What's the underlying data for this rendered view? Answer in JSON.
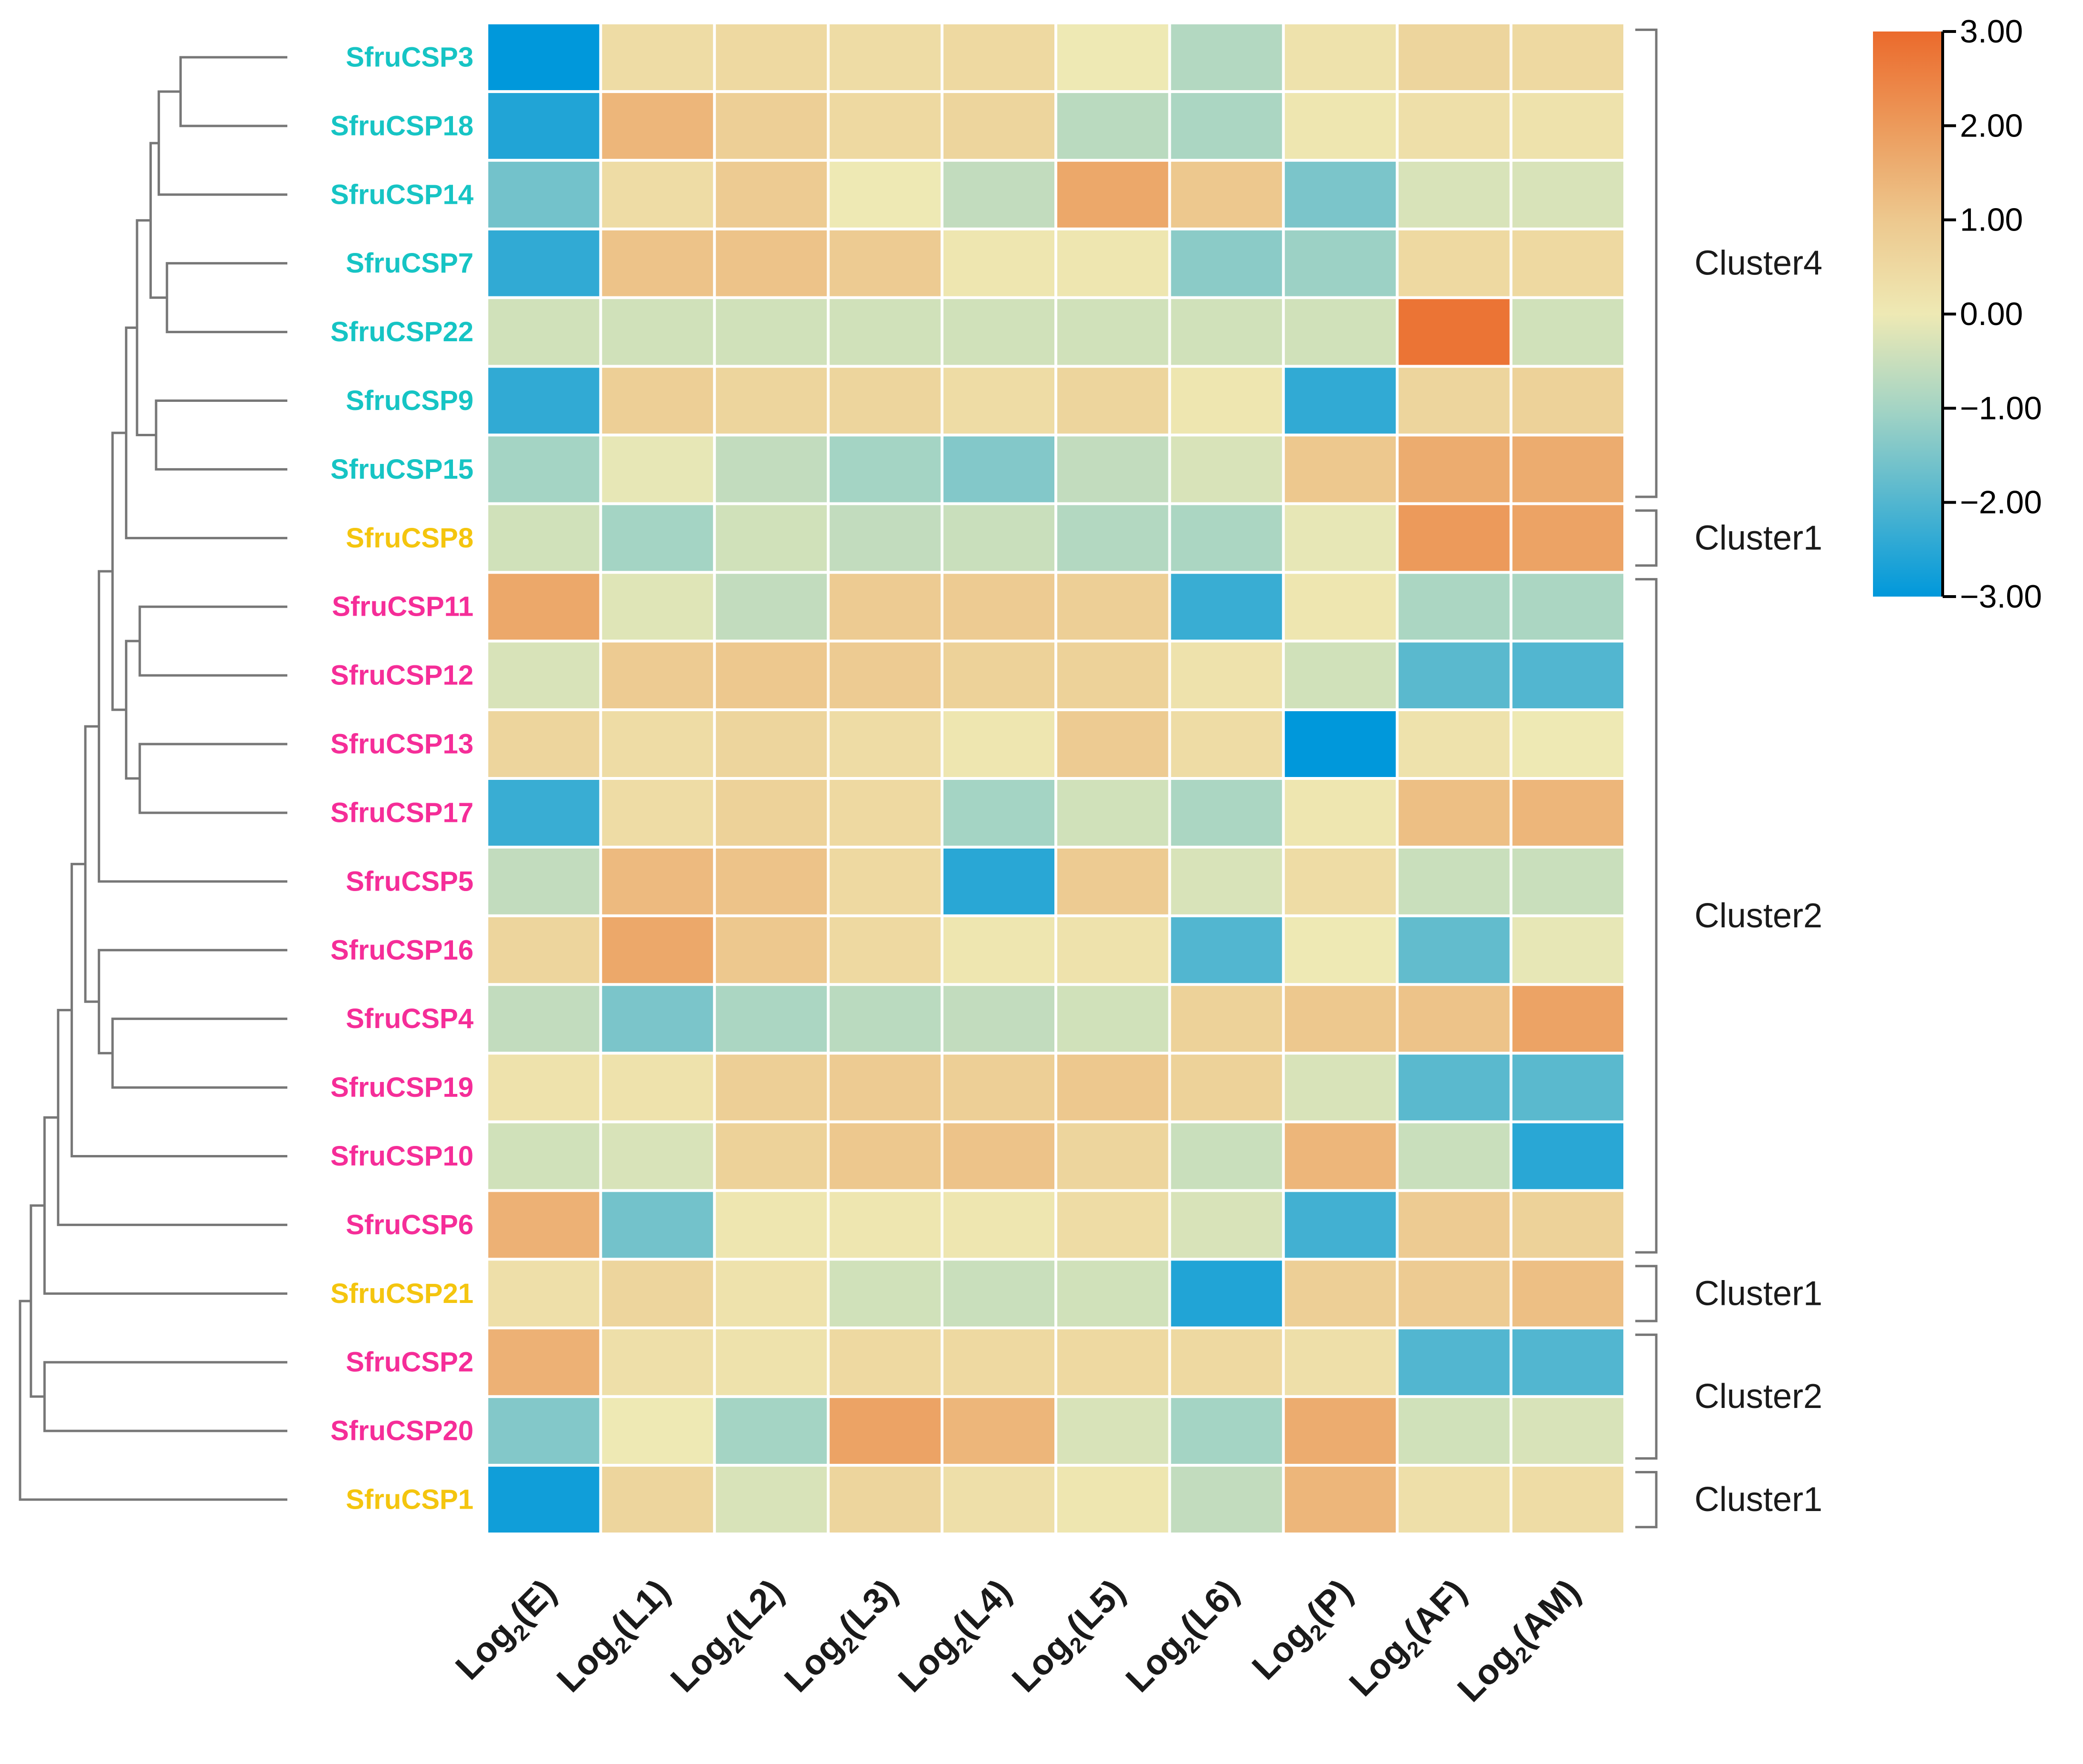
{
  "chart_data": {
    "type": "heatmap",
    "title": "",
    "columns": [
      "E",
      "L1",
      "L2",
      "L3",
      "L4",
      "L5",
      "L6",
      "P",
      "AF",
      "AM"
    ],
    "column_label_prefix": "Log",
    "column_label_subscript": "2",
    "rows": [
      {
        "name": "SfruCSP3",
        "group": "cyan",
        "values": [
          -3.0,
          0.4,
          0.5,
          0.4,
          0.5,
          0.0,
          -0.8,
          0.2,
          0.6,
          0.5
        ]
      },
      {
        "name": "SfruCSP18",
        "group": "cyan",
        "values": [
          -2.6,
          1.4,
          0.8,
          0.5,
          0.6,
          -0.7,
          -0.9,
          0.1,
          0.3,
          0.2
        ]
      },
      {
        "name": "SfruCSP14",
        "group": "cyan",
        "values": [
          -1.6,
          0.4,
          0.9,
          0.0,
          -0.6,
          1.7,
          1.0,
          -1.5,
          -0.3,
          -0.3
        ]
      },
      {
        "name": "SfruCSP7",
        "group": "cyan",
        "values": [
          -2.4,
          1.1,
          1.1,
          0.9,
          0.1,
          0.1,
          -1.3,
          -1.1,
          0.5,
          0.5
        ]
      },
      {
        "name": "SfruCSP22",
        "group": "cyan",
        "values": [
          -0.4,
          -0.4,
          -0.4,
          -0.4,
          -0.4,
          -0.4,
          -0.4,
          -0.4,
          2.8,
          -0.4
        ]
      },
      {
        "name": "SfruCSP9",
        "group": "cyan",
        "values": [
          -2.4,
          0.8,
          0.6,
          0.6,
          0.4,
          0.6,
          0.1,
          -2.4,
          0.6,
          0.7
        ]
      },
      {
        "name": "SfruCSP15",
        "group": "cyan",
        "values": [
          -1.0,
          -0.1,
          -0.6,
          -1.0,
          -1.4,
          -0.6,
          -0.3,
          1.0,
          1.6,
          1.6
        ]
      },
      {
        "name": "SfruCSP8",
        "group": "yellow",
        "values": [
          -0.4,
          -1.0,
          -0.4,
          -0.6,
          -0.5,
          -0.8,
          -0.9,
          -0.1,
          2.0,
          1.8
        ]
      },
      {
        "name": "SfruCSP11",
        "group": "magenta",
        "values": [
          1.7,
          -0.2,
          -0.6,
          0.9,
          0.9,
          0.8,
          -2.3,
          0.1,
          -0.9,
          -0.9
        ]
      },
      {
        "name": "SfruCSP12",
        "group": "magenta",
        "values": [
          -0.3,
          0.9,
          1.0,
          0.9,
          0.7,
          0.7,
          0.2,
          -0.4,
          -1.9,
          -2.0
        ]
      },
      {
        "name": "SfruCSP13",
        "group": "magenta",
        "values": [
          0.6,
          0.4,
          0.6,
          0.4,
          0.1,
          0.9,
          0.4,
          -3.0,
          0.2,
          0.0
        ]
      },
      {
        "name": "SfruCSP17",
        "group": "magenta",
        "values": [
          -2.3,
          0.4,
          0.7,
          0.5,
          -1.0,
          -0.4,
          -0.9,
          0.1,
          1.2,
          1.4
        ]
      },
      {
        "name": "SfruCSP5",
        "group": "magenta",
        "values": [
          -0.6,
          1.3,
          1.1,
          0.5,
          -2.5,
          0.9,
          -0.3,
          0.4,
          -0.5,
          -0.5
        ]
      },
      {
        "name": "SfruCSP16",
        "group": "magenta",
        "values": [
          0.6,
          1.7,
          1.0,
          0.5,
          0.1,
          0.2,
          -2.0,
          0.0,
          -1.8,
          -0.1
        ]
      },
      {
        "name": "SfruCSP4",
        "group": "magenta",
        "values": [
          -0.6,
          -1.5,
          -0.9,
          -0.7,
          -0.6,
          -0.4,
          0.7,
          1.0,
          1.1,
          1.8
        ]
      },
      {
        "name": "SfruCSP19",
        "group": "magenta",
        "values": [
          0.2,
          0.2,
          0.8,
          0.9,
          0.8,
          1.0,
          0.7,
          -0.3,
          -1.9,
          -1.9
        ]
      },
      {
        "name": "SfruCSP10",
        "group": "magenta",
        "values": [
          -0.4,
          -0.3,
          0.7,
          1.0,
          1.1,
          0.6,
          -0.5,
          1.4,
          -0.5,
          -2.5
        ]
      },
      {
        "name": "SfruCSP6",
        "group": "magenta",
        "values": [
          1.5,
          -1.6,
          0.1,
          0.1,
          0.1,
          0.4,
          -0.3,
          -2.2,
          0.9,
          0.7
        ]
      },
      {
        "name": "SfruCSP21",
        "group": "yellow",
        "values": [
          0.3,
          0.6,
          0.2,
          -0.4,
          -0.5,
          -0.4,
          -2.6,
          0.8,
          0.9,
          1.2
        ]
      },
      {
        "name": "SfruCSP2",
        "group": "magenta",
        "values": [
          1.5,
          0.3,
          0.2,
          0.5,
          0.5,
          0.5,
          0.5,
          0.3,
          -2.0,
          -2.0
        ]
      },
      {
        "name": "SfruCSP20",
        "group": "magenta",
        "values": [
          -1.4,
          0.0,
          -1.0,
          1.8,
          1.4,
          -0.3,
          -1.0,
          1.6,
          -0.4,
          -0.3
        ]
      },
      {
        "name": "SfruCSP1",
        "group": "yellow",
        "values": [
          -2.8,
          0.6,
          -0.3,
          0.6,
          0.3,
          0.1,
          -0.6,
          1.4,
          0.3,
          0.4
        ]
      }
    ],
    "colorbar": {
      "min": -3.0,
      "max": 3.0,
      "ticks": [
        "3.00",
        "2.00",
        "1.00",
        "0.00",
        "−1.00",
        "−2.00",
        "−3.00"
      ],
      "tick_values": [
        3,
        2,
        1,
        0,
        -1,
        -2,
        -3
      ],
      "stops": [
        {
          "value": -3.0,
          "color": "#0098DB"
        },
        {
          "value": -1.0,
          "color": "#A4D4C4"
        },
        {
          "value": 0.0,
          "color": "#EEE9B4"
        },
        {
          "value": 1.0,
          "color": "#EDC88E"
        },
        {
          "value": 2.0,
          "color": "#EC9A5B"
        },
        {
          "value": 3.0,
          "color": "#EB6A2C"
        }
      ]
    },
    "clusters": [
      {
        "label": "Cluster4",
        "first_row": 0,
        "last_row": 6
      },
      {
        "label": "Cluster1",
        "first_row": 7,
        "last_row": 7
      },
      {
        "label": "Cluster2",
        "first_row": 8,
        "last_row": 17
      },
      {
        "label": "Cluster1",
        "first_row": 18,
        "last_row": 18
      },
      {
        "label": "Cluster2",
        "first_row": 19,
        "last_row": 20
      },
      {
        "label": "Cluster1",
        "first_row": 21,
        "last_row": 21
      }
    ],
    "group_colors": {
      "cyan": "#16C4C4",
      "yellow": "#F4C50E",
      "magenta": "#F52D98"
    },
    "dendrogram": {
      "leaf_order": [
        0,
        1,
        2,
        3,
        4,
        5,
        6,
        7,
        8,
        9,
        10,
        11,
        12,
        13,
        14,
        15,
        16,
        17,
        18,
        19,
        20,
        21
      ],
      "merges": [
        {
          "a": "L0",
          "b": "L1",
          "h": 0.41
        },
        {
          "a": "N0",
          "b": "L2",
          "h": 0.49
        },
        {
          "a": "L3",
          "b": "L4",
          "h": 0.46
        },
        {
          "a": "N1",
          "b": "N2",
          "h": 0.52
        },
        {
          "a": "L5",
          "b": "L6",
          "h": 0.5
        },
        {
          "a": "N3",
          "b": "N4",
          "h": 0.57
        },
        {
          "a": "N5",
          "b": "L7",
          "h": 0.61
        },
        {
          "a": "L8",
          "b": "L9",
          "h": 0.56
        },
        {
          "a": "L10",
          "b": "L11",
          "h": 0.56
        },
        {
          "a": "N7",
          "b": "N8",
          "h": 0.61
        },
        {
          "a": "N6",
          "b": "N9",
          "h": 0.66
        },
        {
          "a": "N10",
          "b": "L12",
          "h": 0.71
        },
        {
          "a": "L14",
          "b": "L15",
          "h": 0.66
        },
        {
          "a": "L13",
          "b": "N12",
          "h": 0.71
        },
        {
          "a": "N11",
          "b": "N13",
          "h": 0.76
        },
        {
          "a": "N14",
          "b": "L16",
          "h": 0.81
        },
        {
          "a": "N15",
          "b": "L17",
          "h": 0.86
        },
        {
          "a": "N16",
          "b": "L18",
          "h": 0.91
        },
        {
          "a": "L19",
          "b": "L20",
          "h": 0.91
        },
        {
          "a": "N17",
          "b": "N18",
          "h": 0.96
        },
        {
          "a": "N19",
          "b": "L21",
          "h": 1.0
        }
      ]
    },
    "background_color": "#ffffff",
    "grid_color": "#ffffff",
    "line_color": "#777777",
    "text_color": "#1a1a1a"
  }
}
